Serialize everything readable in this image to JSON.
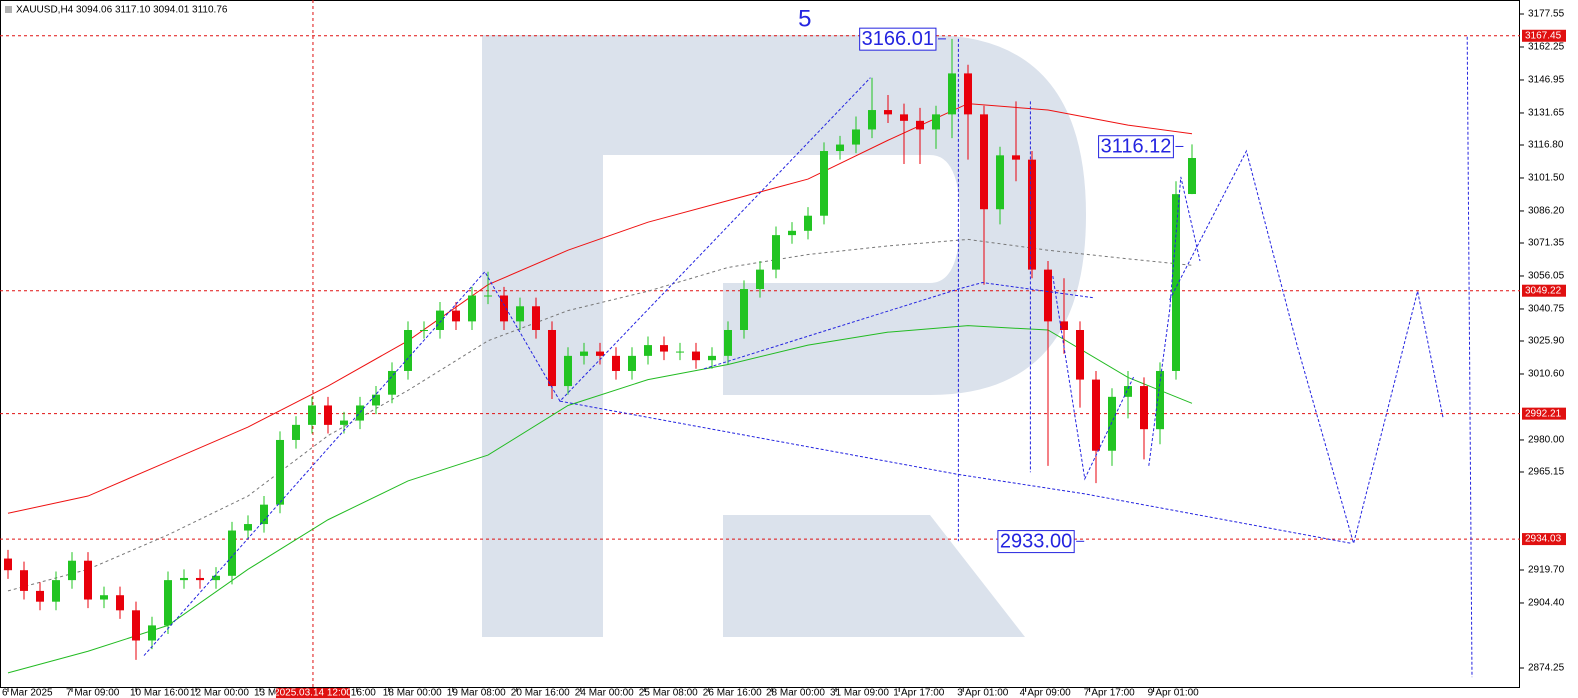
{
  "chart_data": {
    "type": "candlestick",
    "header": "XAUUSD,H4  3094.06 3117.10 3094.01 3110.76",
    "xlim": [
      -0.5,
      94.5
    ],
    "ylim": [
      2864.97,
      3184.04
    ],
    "yticks": [
      {
        "value": 3177.55,
        "label": "3177.55"
      },
      {
        "value": 3162.25,
        "label": "3162.25"
      },
      {
        "value": 3146.95,
        "label": "3146.95"
      },
      {
        "value": 3131.65,
        "label": "3131.65"
      },
      {
        "value": 3116.8,
        "label": "3116.80"
      },
      {
        "value": 3101.5,
        "label": "3101.50"
      },
      {
        "value": 3086.2,
        "label": "3086.20"
      },
      {
        "value": 3071.35,
        "label": "3071.35"
      },
      {
        "value": 3056.05,
        "label": "3056.05"
      },
      {
        "value": 3040.75,
        "label": "3040.75"
      },
      {
        "value": 3025.9,
        "label": "3025.90"
      },
      {
        "value": 3010.6,
        "label": "3010.60"
      },
      {
        "value": 2980,
        "label": "2980.00"
      },
      {
        "value": 2965.15,
        "label": "2965.15"
      },
      {
        "value": 2919.7,
        "label": "2919.70"
      },
      {
        "value": 2904.4,
        "label": "2904.40"
      },
      {
        "value": 2874.25,
        "label": "2874.25"
      }
    ],
    "xticks": [
      {
        "value": 0,
        "label": "6 Mar 2025"
      },
      {
        "value": 4,
        "label": "7 Mar 09:00"
      },
      {
        "value": 8,
        "label": "10 Mar 16:00"
      },
      {
        "value": 11.75,
        "label": "12 Mar 00:00"
      },
      {
        "value": 15.75,
        "label": "13 M"
      },
      {
        "value": 21.8,
        "label": "16:00"
      },
      {
        "value": 23.8,
        "label": "18 Mar 00:00"
      },
      {
        "value": 27.8,
        "label": "19 Mar 08:00"
      },
      {
        "value": 31.8,
        "label": "20 Mar 16:00"
      },
      {
        "value": 35.8,
        "label": "24 Mar 00:00"
      },
      {
        "value": 39.8,
        "label": "25 Mar 08:00"
      },
      {
        "value": 43.8,
        "label": "26 Mar 16:00"
      },
      {
        "value": 47.75,
        "label": "28 Mar 00:00"
      },
      {
        "value": 51.75,
        "label": "31 Mar 09:00"
      },
      {
        "value": 55.7,
        "label": "1 Apr 17:00"
      },
      {
        "value": 59.7,
        "label": "3 Apr 01:00"
      },
      {
        "value": 63.6,
        "label": "4 Apr 09:00"
      },
      {
        "value": 67.6,
        "label": "7 Apr 17:00"
      },
      {
        "value": 71.6,
        "label": "9 Apr 01:00"
      }
    ],
    "cursor": {
      "value": 19.06,
      "label": "2025.03.14 12:00"
    },
    "up_color": "#22c422",
    "down_color": "#e8000b",
    "open": [
      2925,
      2919.6,
      2910,
      2905,
      2915,
      2924,
      2906,
      2908,
      2901,
      2887,
      2894,
      2915,
      2916,
      2915,
      2917,
      2938,
      2941,
      2950,
      2980,
      2987,
      2996,
      2987,
      2989,
      2996,
      3001,
      3012,
      3031,
      3031,
      3040,
      3035,
      3047,
      3047,
      3035,
      3042,
      3031,
      3005,
      3019,
      3021,
      3019,
      3012,
      3019,
      3024,
      3021,
      3021,
      3017,
      3019,
      3031,
      3050,
      3059,
      3075,
      3077,
      3084,
      3114,
      3117,
      3124,
      3133,
      3131,
      3128,
      3124,
      3131,
      3150,
      3131,
      3087,
      3112,
      3110,
      3059,
      3035,
      3031,
      3008,
      2975,
      3000,
      3005,
      2985,
      3012,
      3094.06
    ],
    "high": [
      2929,
      2923.6,
      2914,
      2919,
      2928,
      2928,
      2912,
      2912,
      2905,
      2898,
      2919,
      2920,
      2920,
      2921,
      2942,
      2945,
      2954,
      2984,
      2991,
      3000,
      3000,
      2993,
      3000,
      3005,
      3016,
      3035,
      3035,
      3044,
      3044,
      3051,
      3058,
      3051,
      3046,
      3046,
      3035,
      3023,
      3025,
      3025,
      3023,
      3023,
      3028,
      3028,
      3025,
      3025,
      3023,
      3035,
      3054,
      3063,
      3079,
      3081,
      3088,
      3118,
      3121,
      3130,
      3148,
      3140,
      3136,
      3134,
      3135,
      3166.01,
      3154,
      3135,
      3116,
      3137,
      3114,
      3063,
      3055,
      3035,
      3012,
      3004,
      3012,
      3009,
      3016,
      3100,
      3117.1
    ],
    "low": [
      2915.6,
      2906,
      2901,
      2901,
      2911,
      2902,
      2902,
      2897,
      2878,
      2883,
      2890,
      2911,
      2911,
      2911,
      2913,
      2934,
      2937,
      2946,
      2976,
      2983,
      2983,
      2983,
      2985,
      2992,
      2997,
      3008,
      3027,
      3027,
      3031,
      3031,
      3043,
      3031,
      3031,
      3027,
      2999,
      3001,
      3015,
      3015,
      3008,
      3008,
      3015,
      3017,
      3017,
      3013,
      3013,
      3015,
      3027,
      3046,
      3055,
      3071,
      3073,
      3080,
      3110,
      3113,
      3120,
      3127,
      3108,
      3108,
      3115,
      3120,
      3110,
      3052,
      3080,
      3100,
      3055,
      2968,
      3020,
      2995,
      2960,
      2968,
      2990,
      2971,
      2978,
      3008,
      3094.01
    ],
    "close": [
      2919.6,
      2910,
      2905,
      2915,
      2924,
      2906,
      2908,
      2901,
      2887,
      2894,
      2915,
      2916,
      2915,
      2917,
      2938,
      2941,
      2950,
      2980,
      2987,
      2996,
      2987,
      2989,
      2996,
      3001,
      3012,
      3031,
      3031,
      3040,
      3035,
      3047,
      3047,
      3035,
      3042,
      3031,
      3005,
      3019,
      3021,
      3019,
      3012,
      3019,
      3024,
      3021,
      3021,
      3017,
      3019,
      3031,
      3050,
      3059,
      3075,
      3077,
      3084,
      3114,
      3117,
      3124,
      3133,
      3131,
      3128,
      3124,
      3131,
      3150,
      3131,
      3087,
      3112,
      3110,
      3059,
      3035,
      3031,
      3008,
      2975,
      3000,
      3005,
      2985,
      3012,
      3094,
      3110.76
    ],
    "ma_x": [
      0,
      5,
      10,
      15,
      20,
      25,
      30,
      35,
      40,
      45,
      50,
      55,
      60,
      65,
      70,
      74
    ],
    "moving_averages": [
      {
        "color": "#ee1111",
        "values": [
          2946,
          2954,
          2970,
          2986,
          3005,
          3026,
          3052,
          3068,
          3081,
          3091,
          3101,
          3119,
          3136,
          3133,
          3126,
          3122
        ]
      },
      {
        "color": "#22bb22",
        "values": [
          2872,
          2882,
          2894,
          2920,
          2943,
          2961,
          2973,
          2996,
          3008,
          3015,
          3024,
          3030,
          3033,
          3031,
          3009,
          2997
        ]
      },
      {
        "color": "#777777",
        "dashed": true,
        "values": [
          2910,
          2920,
          2936,
          2954,
          2982,
          3003,
          3026,
          3040,
          3049,
          3060,
          3066,
          3070,
          3073,
          3068,
          3064,
          3061
        ]
      }
    ],
    "wave_color": "#2424e0",
    "waves": [
      {
        "x": [
          8.5,
          29.8,
          34.5,
          53.9
        ],
        "values": [
          2880,
          3058,
          2998,
          3148
        ]
      },
      {
        "x": [
          43.5,
          59.4,
          60.9,
          67.8
        ],
        "values": [
          3013,
          3050,
          3053,
          3046
        ]
      },
      {
        "x": [
          34.5,
          59.4,
          67.3,
          84.0
        ],
        "values": [
          2998,
          2964,
          2955,
          2932
        ]
      },
      {
        "x": [
          59.4,
          59.4
        ],
        "values": [
          3166,
          2933
        ]
      },
      {
        "x": [
          63.9,
          63.9
        ],
        "values": [
          3137,
          2965
        ]
      },
      {
        "x": [
          65.3,
          67.3,
          70.4
        ],
        "values": [
          3056,
          2962,
          3010
        ]
      },
      {
        "x": [
          71.3,
          72.6,
          73.3,
          74.5
        ],
        "values": [
          2968,
          3040,
          3102,
          3063
        ]
      },
      {
        "x": [
          72.6,
          77.4,
          80.6,
          84.1,
          88.1,
          89.7
        ],
        "values": [
          3045,
          3114,
          3023,
          2932,
          3049,
          2990
        ]
      },
      {
        "x": [
          91.2,
          91.5
        ],
        "values": [
          3167,
          2870
        ]
      }
    ],
    "levels": [
      {
        "value": 3167.45
      },
      {
        "value": 3049.22
      },
      {
        "value": 2992.21
      },
      {
        "value": 2934.03
      }
    ],
    "level_color": "#e01010",
    "wave_label": {
      "x": 49.8,
      "text": "5"
    },
    "annotations": [
      {
        "x": 58.06,
        "value": 3166.01
      },
      {
        "x": 72.9,
        "value": 3116.12
      },
      {
        "x": 66.7,
        "value": 2933,
        "label": "2933.00"
      }
    ]
  }
}
